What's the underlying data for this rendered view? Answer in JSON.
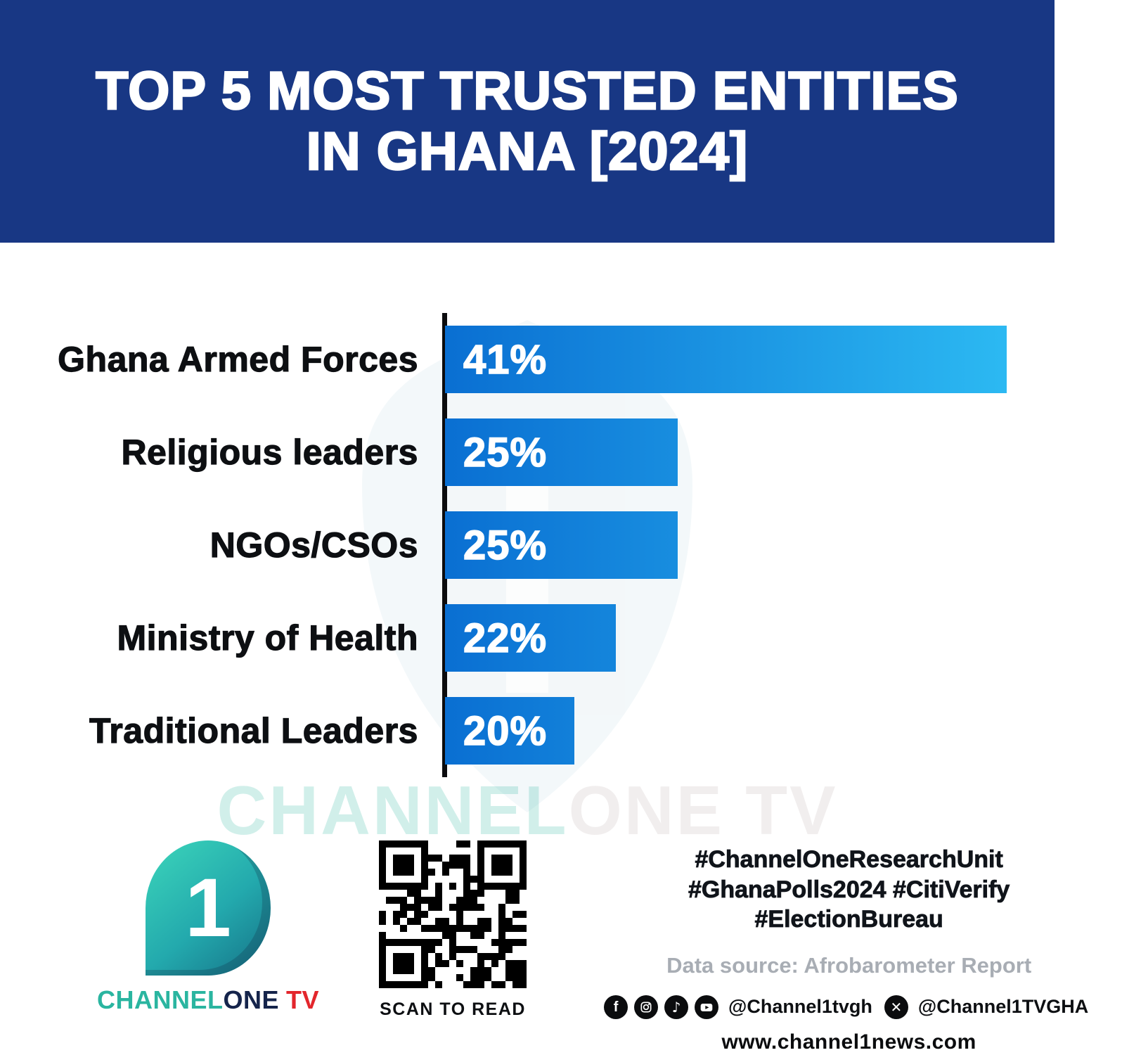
{
  "header": {
    "title_line1": "TOP 5 MOST TRUSTED ENTITIES",
    "title_line2": "IN GHANA [2024]"
  },
  "chart_data": {
    "type": "bar",
    "orientation": "horizontal",
    "title": "Top 5 Most Trusted Entities in Ghana [2024]",
    "categories": [
      "Ghana Armed Forces",
      "Religious leaders",
      "NGOs/CSOs",
      "Ministry of Health",
      "Traditional Leaders"
    ],
    "values": [
      41,
      25,
      25,
      22,
      20
    ],
    "value_labels": [
      "41%",
      "25%",
      "25%",
      "22%",
      "20%"
    ],
    "unit": "%",
    "grid": false,
    "legend": false,
    "axis": "single-left-vertical-baseline",
    "value_label_position": "inside-left"
  },
  "watermark": {
    "part1": "CHANNEL",
    "part2": "ONE TV"
  },
  "branding": {
    "logo_digit": "1",
    "wordmark_part1": "CHANNEL",
    "wordmark_part2": "ONE",
    "wordmark_part3": "TV"
  },
  "qr": {
    "caption": "SCAN TO READ"
  },
  "footer": {
    "hashtags_line1": "#ChannelOneResearchUnit",
    "hashtags_line2": "#GhanaPolls2024 #CitiVerify",
    "hashtags_line3": "#ElectionBureau",
    "data_source": "Data source: Afrobarometer Report",
    "social_handle_primary": "@Channel1tvgh",
    "social_handle_x": "@Channel1TVGHA",
    "website": "www.channel1news.com",
    "social_icons": [
      "facebook-icon",
      "instagram-icon",
      "tiktok-icon",
      "youtube-icon",
      "x-icon"
    ]
  },
  "colors": {
    "header_bg": "#183784",
    "bar_gradient_start": "#0A6FD2",
    "bar_gradient_end": "#2CB9F2",
    "axis_black": "#0B0C0E",
    "brand_teal": "#2AB5A0",
    "brand_navy": "#15244B",
    "brand_red": "#E3262C",
    "muted_gray": "#A8ADB4"
  }
}
